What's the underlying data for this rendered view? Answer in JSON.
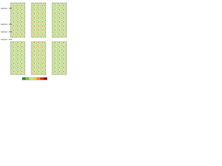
{
  "figure": {
    "sensor_labels": [
      "Capteur n°1",
      "Capteur n°2",
      "Capteur n°3",
      "Capteur n°4"
    ],
    "panel_color": "#cfe3a6",
    "legend_colors": [
      "#2e8b3a",
      "#7cc04a",
      "#cfe3a6",
      "#f2d34a",
      "#f0902a",
      "#d8321f",
      "#8b1010"
    ]
  }
}
